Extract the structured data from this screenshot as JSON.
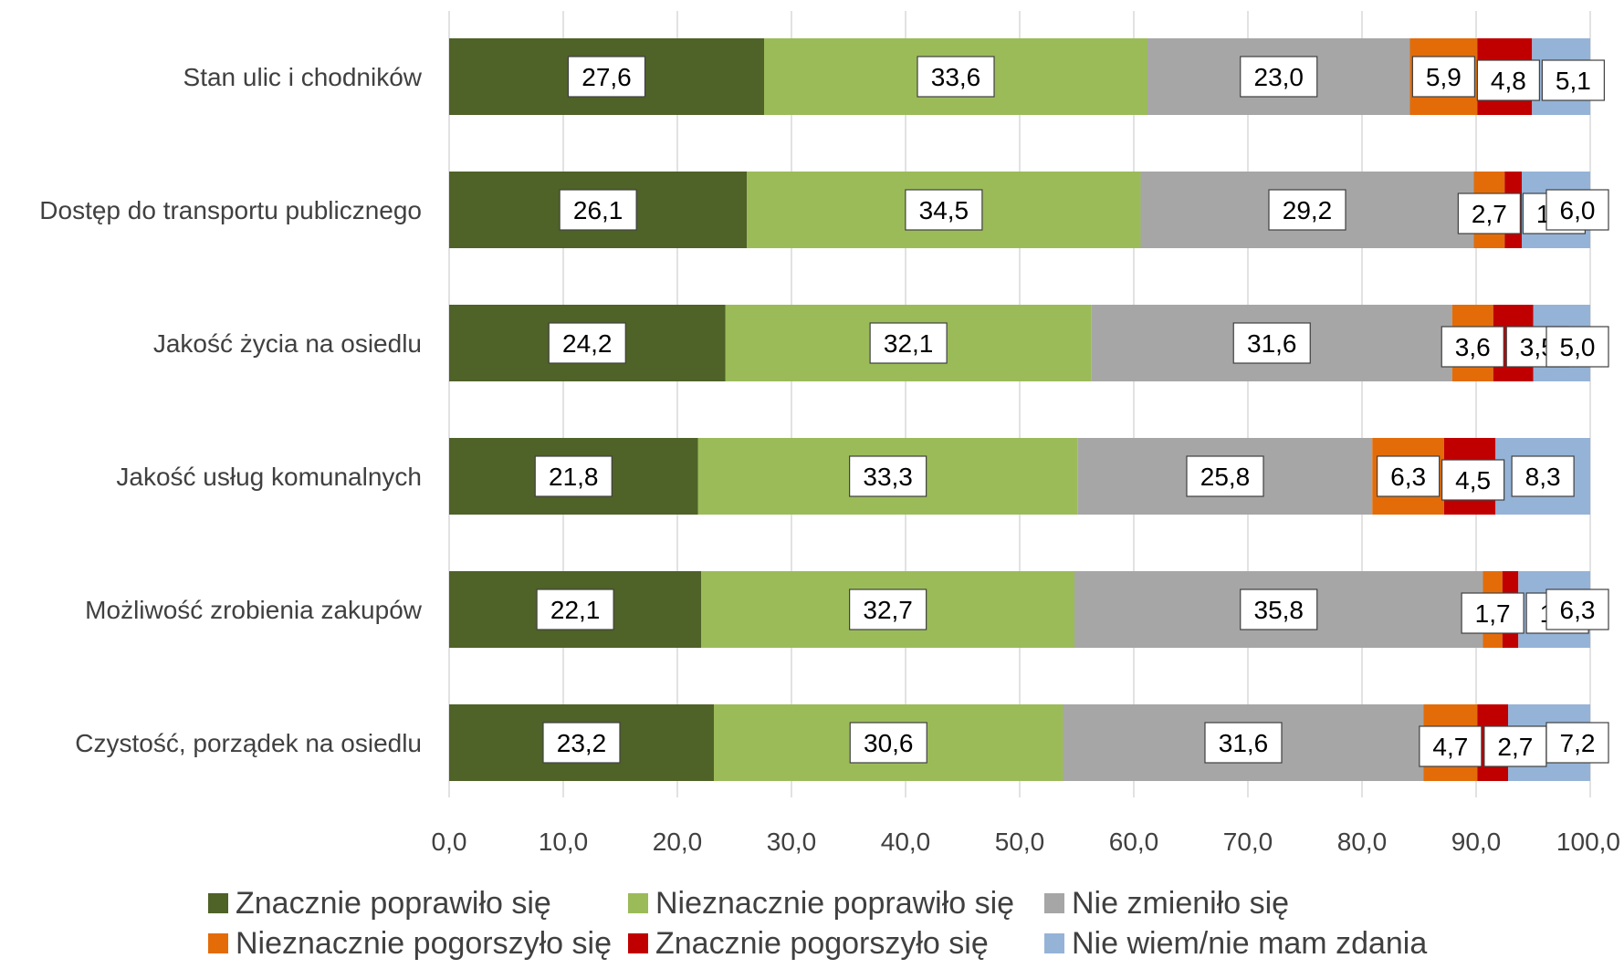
{
  "chart_data": {
    "type": "bar",
    "orientation": "horizontal",
    "stacked": true,
    "categories": [
      "Stan ulic i chodników",
      "Dostęp do transportu publicznego",
      "Jakość życia na osiedlu",
      "Jakość usług komunalnych",
      "Możliwość zrobienia zakupów",
      "Czystość, porządek na osiedlu"
    ],
    "series": [
      {
        "name": "Znacznie poprawiło się",
        "color": "#4f6228",
        "values": [
          27.6,
          26.1,
          24.2,
          21.8,
          22.1,
          23.2
        ],
        "labels": [
          "27,6",
          "26,1",
          "24,2",
          "21,8",
          "22,1",
          "23,2"
        ]
      },
      {
        "name": "Nieznacznie poprawiło się",
        "color": "#9bbb59",
        "values": [
          33.6,
          34.5,
          32.1,
          33.3,
          32.7,
          30.6
        ],
        "labels": [
          "33,6",
          "34,5",
          "32,1",
          "33,3",
          "32,7",
          "30,6"
        ]
      },
      {
        "name": "Nie zmieniło się",
        "color": "#a6a6a6",
        "values": [
          23.0,
          29.2,
          31.6,
          25.8,
          35.8,
          31.6
        ],
        "labels": [
          "23,0",
          "29,2",
          "31,6",
          "25,8",
          "35,8",
          "31,6"
        ]
      },
      {
        "name": "Nieznacznie pogorszyło się",
        "color": "#e36c09",
        "values": [
          5.9,
          2.7,
          3.6,
          6.3,
          1.7,
          4.7
        ],
        "labels": [
          "5,9",
          "2,7",
          "3,6",
          "6,3",
          "1,7",
          "4,7"
        ]
      },
      {
        "name": "Znacznie pogorszyło się",
        "color": "#c00000",
        "values": [
          4.8,
          1.5,
          3.5,
          4.5,
          1.4,
          2.7
        ],
        "labels": [
          "4,8",
          "1,5",
          "3,5",
          "4,5",
          "1,4",
          "2,7"
        ]
      },
      {
        "name": "Nie wiem/nie mam zdania",
        "color": "#95b3d7",
        "values": [
          5.1,
          6.0,
          5.0,
          8.3,
          6.3,
          7.2
        ],
        "labels": [
          "5,1",
          "6,0",
          "5,0",
          "8,3",
          "6,3",
          "7,2"
        ]
      }
    ],
    "xlim": [
      0,
      100
    ],
    "xticks": [
      "0,0",
      "10,0",
      "20,0",
      "30,0",
      "40,0",
      "50,0",
      "60,0",
      "70,0",
      "80,0",
      "90,0",
      "100,0"
    ],
    "grid": true,
    "legend_position": "bottom",
    "legend_rows": [
      [
        "Znacznie poprawiło się",
        "Nieznacznie poprawiło się",
        "Nie zmieniło się"
      ],
      [
        "Nieznacznie pogorszyło się",
        "Znacznie pogorszyło się",
        "Nie wiem/nie mam zdania"
      ]
    ]
  }
}
